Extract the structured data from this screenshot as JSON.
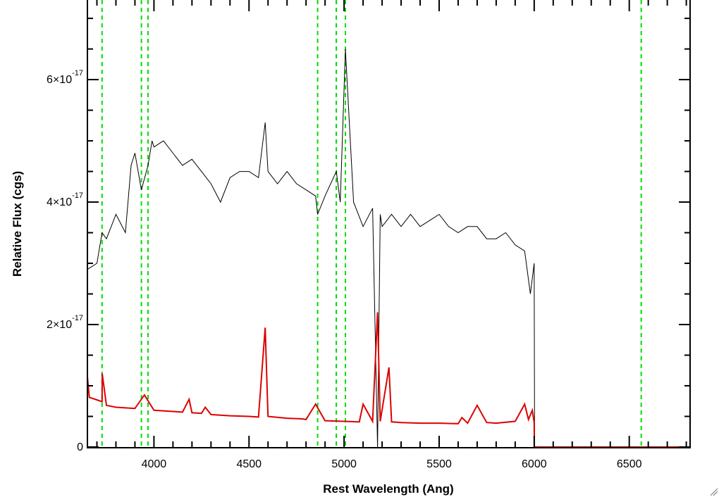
{
  "chart_data": {
    "type": "line",
    "xlabel": "Rest Wavelength (Ang)",
    "ylabel": "Relative Flux (cgs)",
    "xlim": [
      3650,
      6820
    ],
    "ylim": [
      0,
      7.3e-17
    ],
    "x_ticks": [
      4000,
      4500,
      5000,
      5500,
      6000,
      6500
    ],
    "x_tick_labels": [
      "4000",
      "4500",
      "5000",
      "5500",
      "6000",
      "6500"
    ],
    "y_ticks": [
      0,
      2e-17,
      4e-17,
      6e-17
    ],
    "y_tick_labels": [
      {
        "mantissa": "0",
        "exponent": ""
      },
      {
        "mantissa": "2×10",
        "exponent": "-17"
      },
      {
        "mantissa": "4×10",
        "exponent": "-17"
      },
      {
        "mantissa": "6×10",
        "exponent": "-17"
      }
    ],
    "colors": {
      "spectrum": "#000000",
      "error": "#dd0000",
      "lines": "#00dd00"
    },
    "reference_lines": [
      3727,
      3934,
      3969,
      4861,
      4959,
      5007,
      6563
    ],
    "spectrum": {
      "x": [
        3650,
        3700,
        3727,
        3750,
        3800,
        3850,
        3880,
        3900,
        3934,
        3969,
        3990,
        4000,
        4050,
        4100,
        4150,
        4200,
        4250,
        4300,
        4350,
        4400,
        4450,
        4500,
        4550,
        4585,
        4600,
        4650,
        4700,
        4750,
        4800,
        4850,
        4861,
        4900,
        4959,
        4980,
        5007,
        5050,
        5100,
        5150,
        5176,
        5190,
        5200,
        5250,
        5300,
        5350,
        5400,
        5450,
        5500,
        5550,
        5600,
        5650,
        5700,
        5750,
        5800,
        5850,
        5900,
        5950,
        5980,
        6000,
        6002,
        6050,
        6100,
        6200,
        6300,
        6400,
        6500,
        6600,
        6700,
        6820
      ],
      "y": [
        2.9e-17,
        3e-17,
        3.5e-17,
        3.4e-17,
        3.8e-17,
        3.5e-17,
        4.6e-17,
        4.8e-17,
        4.2e-17,
        4.6e-17,
        5e-17,
        4.9e-17,
        5e-17,
        4.8e-17,
        4.6e-17,
        4.7e-17,
        4.5e-17,
        4.3e-17,
        4e-17,
        4.4e-17,
        4.5e-17,
        4.5e-17,
        4.4e-17,
        5.3e-17,
        4.5e-17,
        4.3e-17,
        4.5e-17,
        4.3e-17,
        4.2e-17,
        4.1e-17,
        3.8e-17,
        4.1e-17,
        4.5e-17,
        4e-17,
        6.5e-17,
        4e-17,
        3.6e-17,
        3.9e-17,
        0.0,
        3.8e-17,
        3.6e-17,
        3.8e-17,
        3.6e-17,
        3.8e-17,
        3.6e-17,
        3.7e-17,
        3.8e-17,
        3.6e-17,
        3.5e-17,
        3.6e-17,
        3.6e-17,
        3.4e-17,
        3.4e-17,
        3.5e-17,
        3.3e-17,
        3.2e-17,
        2.5e-17,
        3e-17,
        0.0,
        0.0,
        0.0,
        0.0,
        0.0,
        0.0,
        0.0,
        0.0,
        0.0,
        0.0
      ]
    },
    "error": {
      "x": [
        3650,
        3660,
        3700,
        3727,
        3728,
        3750,
        3800,
        3900,
        3950,
        4000,
        4100,
        4150,
        4185,
        4200,
        4250,
        4270,
        4300,
        4400,
        4500,
        4550,
        4585,
        4600,
        4700,
        4780,
        4800,
        4850,
        4900,
        5000,
        5080,
        5100,
        5150,
        5176,
        5190,
        5236,
        5250,
        5300,
        5400,
        5500,
        5600,
        5620,
        5650,
        5700,
        5750,
        5800,
        5900,
        5950,
        5970,
        5990,
        6000,
        6001,
        6100,
        6200,
        6400,
        6600,
        6820
      ],
      "y": [
        1.15e-17,
        8.1e-18,
        7.7e-18,
        7.4e-18,
        1.2e-17,
        6.8e-18,
        6.5e-18,
        6.3e-18,
        8.5e-18,
        6e-18,
        5.8e-18,
        5.7e-18,
        7.8e-18,
        5.6e-18,
        5.5e-18,
        6.5e-18,
        5.3e-18,
        5.1e-18,
        5e-18,
        4.9e-18,
        1.95e-17,
        5e-18,
        4.7e-18,
        4.6e-18,
        4.5e-18,
        7e-18,
        4.3e-18,
        4.2e-18,
        4.1e-18,
        7e-18,
        4.2e-18,
        2.2e-17,
        4.2e-18,
        1.3e-17,
        4.1e-18,
        4e-18,
        3.9e-18,
        3.9e-18,
        3.8e-18,
        4.8e-18,
        3.9e-18,
        6.8e-18,
        4e-18,
        3.9e-18,
        4.2e-18,
        7e-18,
        4.5e-18,
        6e-18,
        4e-18,
        0.0,
        0.0,
        0.0,
        0.0,
        0.0,
        0.0
      ]
    }
  }
}
